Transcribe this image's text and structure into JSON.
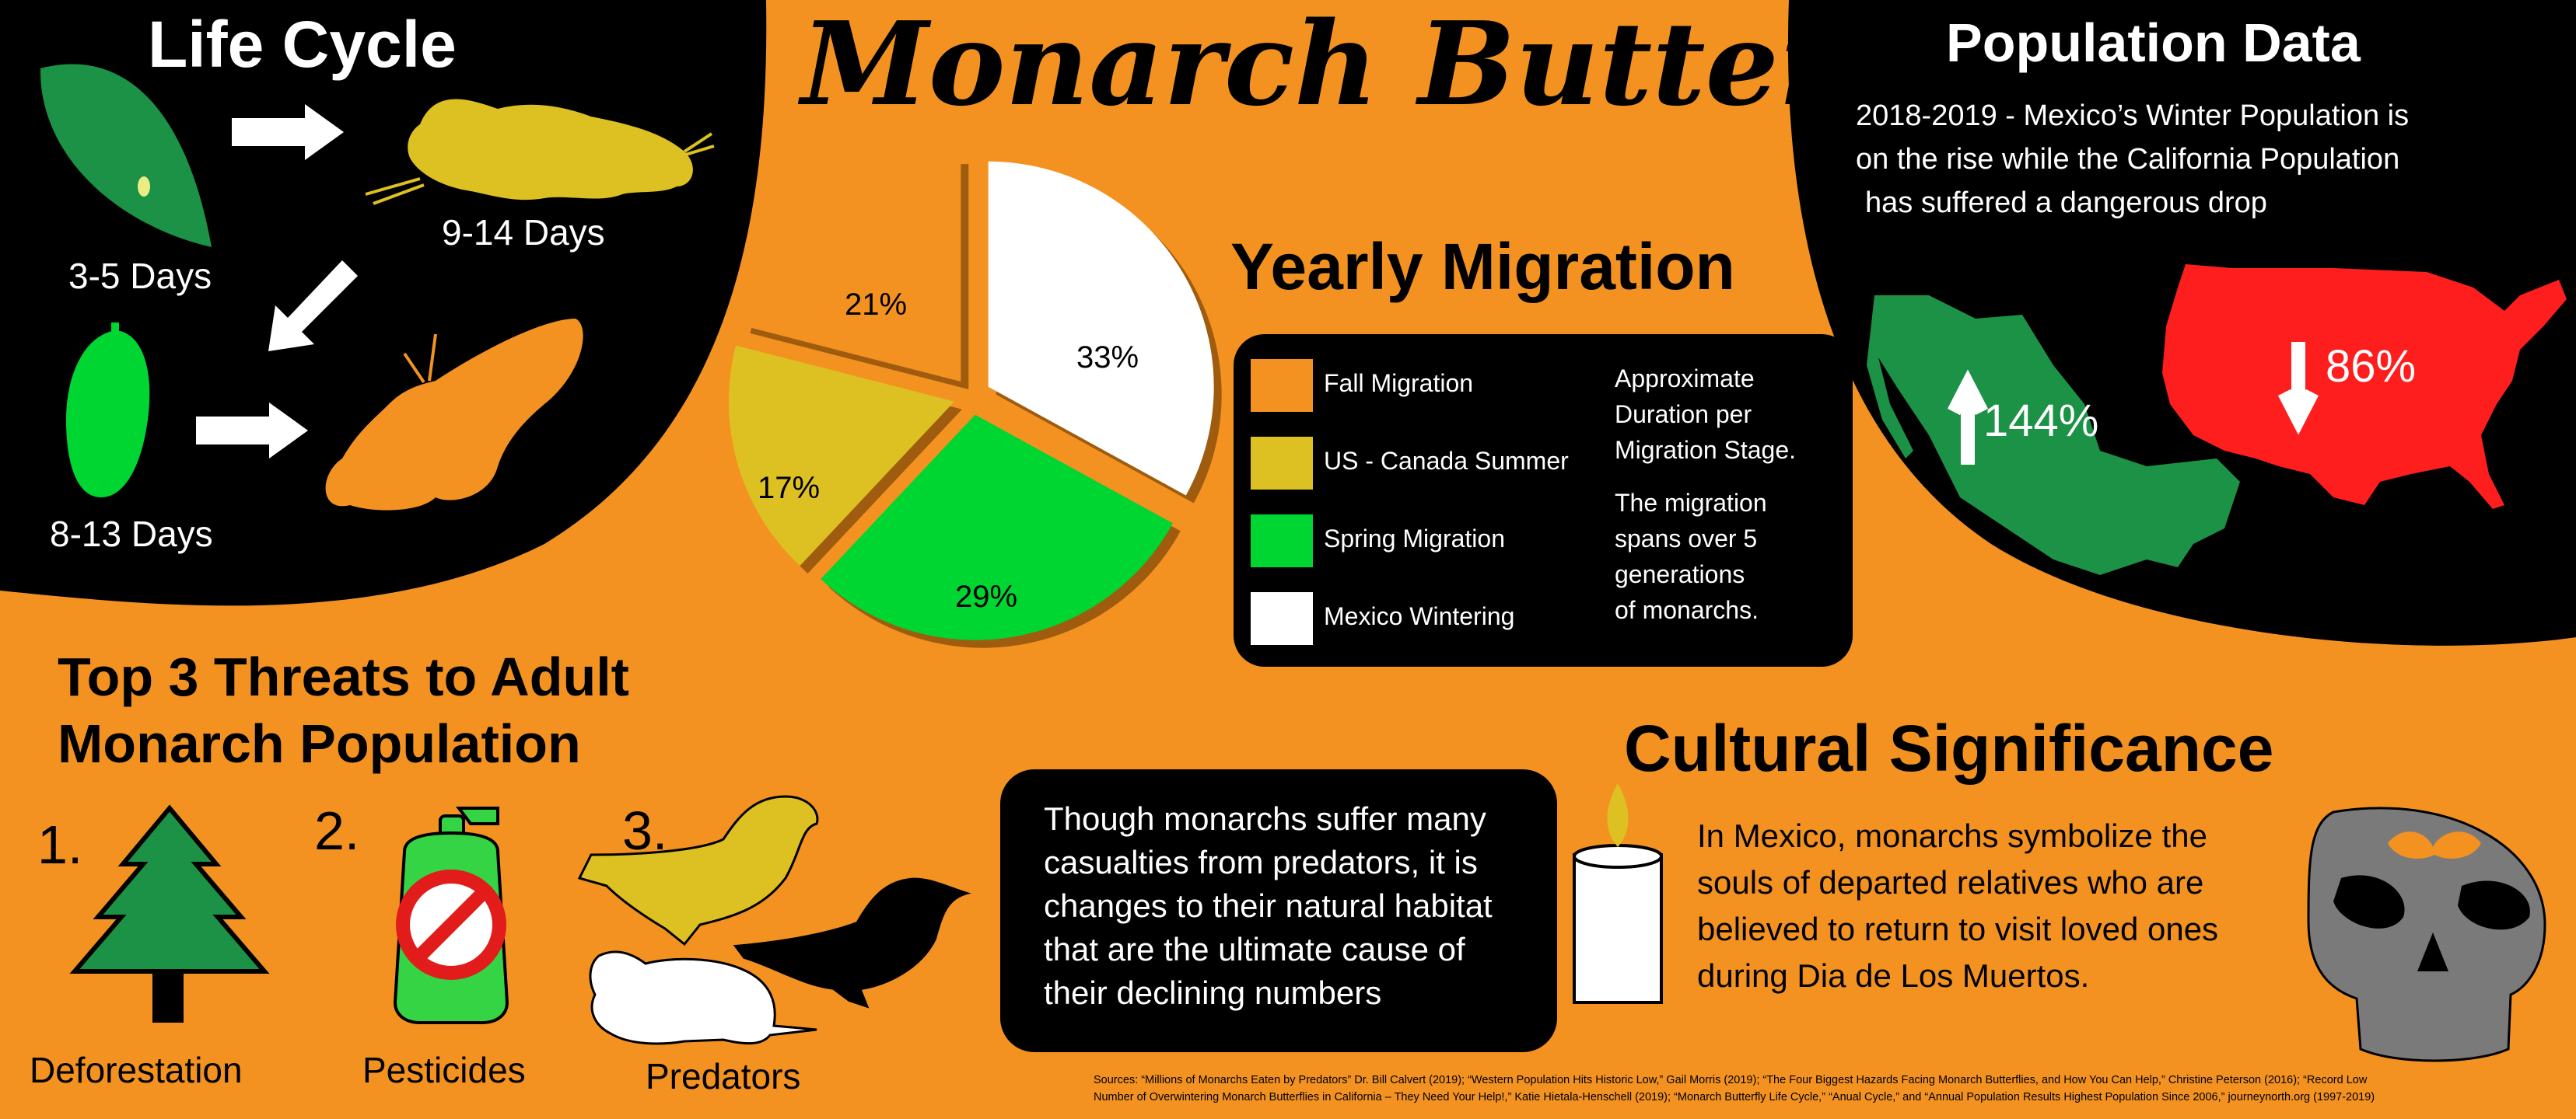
{
  "title": "Monarch Butterfly",
  "life_cycle": {
    "heading": "Life Cycle",
    "egg_days": "3-5 Days",
    "caterpillar_days": "9-14 Days",
    "chrysalis_days": "8-13 Days"
  },
  "migration": {
    "heading": "Yearly Migration",
    "slices": [
      {
        "label": "Mexico Wintering",
        "percent": "33%",
        "value": 33,
        "color": "#ffffff"
      },
      {
        "label": "Spring Migration",
        "percent": "29%",
        "value": 29,
        "color": "#00d631"
      },
      {
        "label": "US - Canada Summer",
        "percent": "17%",
        "value": 17,
        "color": "#ddc123"
      },
      {
        "label": "Fall Migration",
        "percent": "21%",
        "value": 21,
        "color": "#f39221"
      }
    ],
    "legend": [
      {
        "label": "Fall Migration",
        "color": "#f39221"
      },
      {
        "label": "US - Canada Summer",
        "color": "#ddc123"
      },
      {
        "label": "Spring Migration",
        "color": "#00d631"
      },
      {
        "label": "Mexico Wintering",
        "color": "#ffffff"
      }
    ],
    "note1": [
      "Approximate",
      "Duration per",
      "Migration Stage."
    ],
    "note2": [
      "The migration",
      "spans over 5",
      "generations",
      "of monarchs."
    ]
  },
  "population": {
    "heading": "Population Data",
    "text": [
      "2018-2019 - Mexico’s Winter Population is",
      "on the rise while the California Population",
      "has suffered a dangerous drop"
    ],
    "mexico_change": "144%",
    "us_change": "86%",
    "mexico_color": "#1b9245",
    "us_color": "#ff1e1e"
  },
  "threats": {
    "heading": [
      "Top 3 Threats to Adult",
      "Monarch Population"
    ],
    "items": [
      {
        "number": "1.",
        "label": "Deforestation"
      },
      {
        "number": "2.",
        "label": "Pesticides"
      },
      {
        "number": "3.",
        "label": "Predators"
      }
    ],
    "callout": [
      "Though monarchs suffer many",
      "casualties from predators, it is",
      "changes to their natural habitat",
      "that are the ultimate cause of",
      "their declining numbers"
    ]
  },
  "cultural": {
    "heading": "Cultural Significance",
    "text": [
      "In Mexico, monarchs symbolize the",
      "souls of departed relatives who are",
      "believed to return to visit loved ones",
      "during Dia de Los Muertos."
    ]
  },
  "sources": [
    "Sources: “Millions of Monarchs Eaten by Predators” Dr. Bill Calvert (2019); “Western Population Hits Historic Low,”  Gail Morris (2019); “The Four Biggest Hazards Facing Monarch Butterflies, and How You Can Help,” Christine Peterson (2016); “Record Low",
    "Number of Overwintering Monarch Butterflies in California – They Need Your Help!,”  Katie Hietala-Henschell (2019); “Monarch Butterfly Life Cycle,” “Anual Cycle,” and “Annual Population Results Highest Population Since 2006,” journeynorth.org (1997-2019)"
  ],
  "colors": {
    "background": "#f39221",
    "panel": "#000000",
    "leaf": "#1b9245",
    "caterpillar": "#ddc123",
    "chrysalis": "#00d631",
    "butterfly": "#f39221",
    "tree": "#1b9245",
    "bottle": "#35d444",
    "skull": "#7a7a7a"
  },
  "icons": [
    "leaf-egg-icon",
    "caterpillar-icon",
    "chrysalis-icon",
    "butterfly-icon",
    "arrow-icon",
    "mexico-map-icon",
    "usa-map-icon",
    "tree-icon",
    "pesticide-bottle-icon",
    "bird-icon",
    "mouse-icon",
    "candle-icon",
    "skull-icon"
  ]
}
